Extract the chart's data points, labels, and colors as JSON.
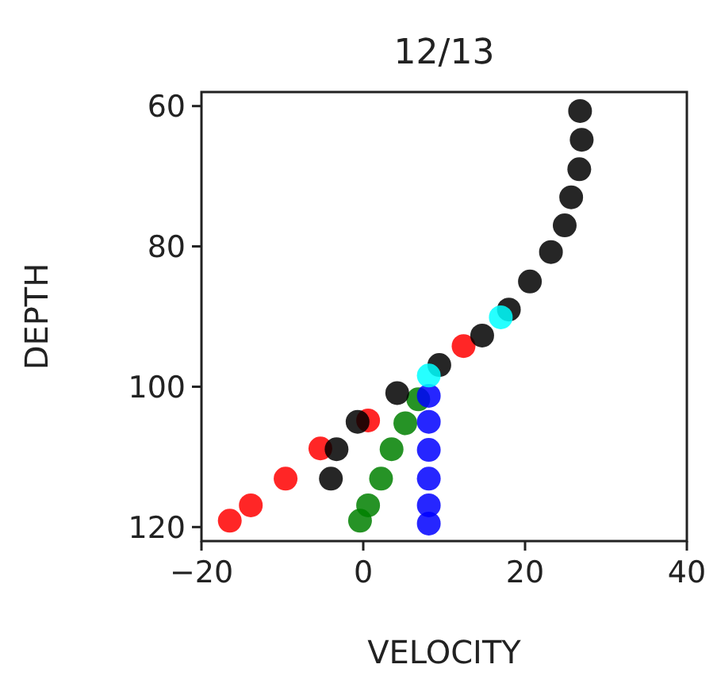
{
  "chart_data": {
    "type": "scatter",
    "title": "12/13",
    "xlabel": "VELOCITY",
    "ylabel": "DEPTH",
    "xlim": [
      -20,
      40
    ],
    "xticks": [
      -20,
      0,
      20,
      40
    ],
    "ylim": [
      122,
      58
    ],
    "yticks": [
      60,
      80,
      100,
      120
    ],
    "grid": false,
    "marker": "circle",
    "series": [
      {
        "color": "#ff0000",
        "x": [
          -16.5,
          -13.9,
          -9.6,
          -5.3,
          0.6,
          12.4
        ],
        "values": [
          119.1,
          116.9,
          113.1,
          108.8,
          104.8,
          94.2
        ]
      },
      {
        "color": "#008000",
        "x": [
          -0.4,
          0.6,
          2.2,
          3.5,
          5.2,
          6.8
        ],
        "values": [
          119.1,
          116.9,
          113.1,
          108.9,
          105.2,
          101.8
        ]
      },
      {
        "color": "#0000ff",
        "x": [
          8.1,
          8.1,
          8.1,
          8.1,
          8.1,
          8.1
        ],
        "values": [
          119.5,
          116.9,
          113.1,
          109.0,
          105.0,
          101.3
        ]
      },
      {
        "color": "#000000",
        "x": [
          26.8,
          27.0,
          26.7,
          25.7,
          24.9,
          23.2,
          20.6,
          18.0,
          14.7,
          9.4,
          4.2,
          -0.7,
          -3.3,
          -4.0
        ],
        "values": [
          60.7,
          64.8,
          69.0,
          73.0,
          77.0,
          80.8,
          85.0,
          89.0,
          92.7,
          96.9,
          100.9,
          105.0,
          108.9,
          113.1
        ]
      },
      {
        "color": "#00ffff",
        "x": [
          8.1,
          17.0
        ],
        "values": [
          98.4,
          90.1
        ]
      }
    ]
  }
}
